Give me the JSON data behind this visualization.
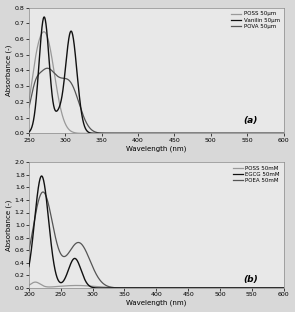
{
  "panel_a": {
    "xlabel": "Wavelength (nm)",
    "ylabel": "Absorbance (-)",
    "xlim": [
      250,
      600
    ],
    "ylim": [
      0,
      0.8
    ],
    "yticks": [
      0,
      0.1,
      0.2,
      0.3,
      0.4,
      0.5,
      0.6,
      0.7,
      0.8
    ],
    "xticks": [
      250,
      300,
      350,
      400,
      450,
      500,
      550,
      600
    ],
    "label": "(a)",
    "legend": [
      "POSS 50μm",
      "Vanilin 50μm",
      "POVA 50μm"
    ],
    "colors": [
      "#999999",
      "#111111",
      "#555555"
    ],
    "bg_color": "#e8e8e8"
  },
  "panel_b": {
    "xlabel": "Wavelength (nm)",
    "ylabel": "Absorbance (-)",
    "xlim": [
      200,
      600
    ],
    "ylim": [
      0,
      2.0
    ],
    "yticks": [
      0,
      0.2,
      0.4,
      0.6,
      0.8,
      1.0,
      1.2,
      1.4,
      1.6,
      1.8,
      2.0
    ],
    "xticks": [
      200,
      250,
      300,
      350,
      400,
      450,
      500,
      550,
      600
    ],
    "label": "(b)",
    "legend": [
      "POSS 50mM",
      "EGCG 50mM",
      "POEA 50mM"
    ],
    "colors": [
      "#999999",
      "#111111",
      "#555555"
    ],
    "bg_color": "#e8e8e8"
  }
}
